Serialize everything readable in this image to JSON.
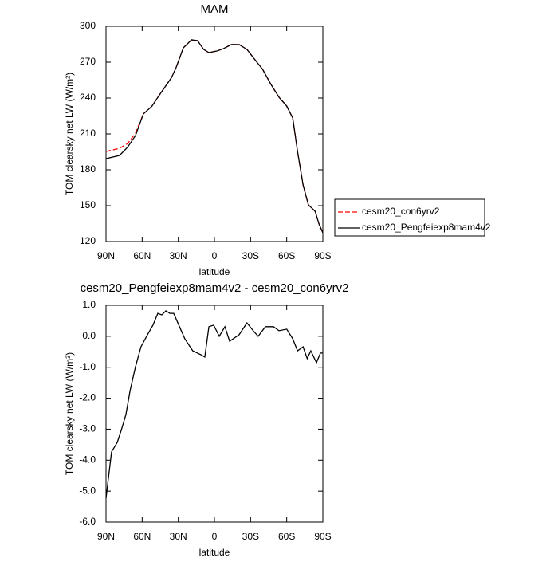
{
  "chart_data": [
    {
      "type": "line",
      "title": "MAM",
      "xlabel": "latitude",
      "ylabel": "TOM clearsky net LW (W/m²)",
      "x": [
        90,
        78.75,
        72,
        65.5,
        59,
        52,
        45.6,
        35.7,
        32,
        25.8,
        19,
        14,
        9,
        4.6,
        -2,
        -7.4,
        -14,
        -20.5,
        -27,
        -33.7,
        -40,
        -47,
        -53.6,
        -60,
        -65,
        -69,
        -73.6,
        -78,
        -83.6,
        -86.7,
        -90
      ],
      "series": [
        {
          "name": "cesm20_con6yrv2",
          "color": "#ff0000",
          "style": "dashed",
          "values": [
            195.3,
            198,
            202,
            210.7,
            226.7,
            233,
            242.7,
            257,
            265,
            282,
            288.7,
            288,
            280.7,
            278,
            279.3,
            281.3,
            284.7,
            284.7,
            280.7,
            272,
            264,
            251.3,
            240.7,
            233.3,
            223.3,
            195.3,
            167.3,
            150.7,
            145.3,
            135,
            127.3
          ]
        },
        {
          "name": "cesm20_Pengfeiexp8mam4v2",
          "color": "#000000",
          "style": "solid",
          "values": [
            189.3,
            192,
            199,
            208.7,
            226.7,
            233,
            242.7,
            257,
            265,
            282,
            288.7,
            288,
            280.7,
            278,
            279.3,
            281.3,
            284.7,
            284.7,
            280.7,
            272,
            264,
            251.3,
            240.7,
            233.3,
            223.3,
            195.3,
            167.3,
            150.7,
            145.3,
            135,
            127.3
          ]
        }
      ],
      "xlim": [
        90,
        -90
      ],
      "xticks": [
        {
          "value": 90,
          "label": "90N"
        },
        {
          "value": 60,
          "label": "60N"
        },
        {
          "value": 30,
          "label": "30N"
        },
        0,
        {
          "value": -30,
          "label": "30S"
        },
        {
          "value": -60,
          "label": "60S"
        },
        {
          "value": -90,
          "label": "90S"
        }
      ],
      "ylim": [
        120,
        300
      ],
      "yticks": [
        120,
        150,
        180,
        210,
        240,
        270,
        300
      ],
      "legend": "right"
    },
    {
      "type": "line",
      "title": "cesm20_Pengfeiexp8mam4v2 - cesm20_con6yrv2",
      "xlabel": "latitude",
      "ylabel": "TOM clearsky net LW (W/m²)",
      "x": [
        90,
        85.4,
        80.7,
        77.4,
        73.5,
        70,
        65.5,
        61,
        55.6,
        51,
        47,
        43.7,
        40.3,
        37,
        33.8,
        29,
        24.6,
        18,
        11,
        8,
        4.6,
        0.6,
        -4,
        -8.7,
        -12.6,
        -20.5,
        -27,
        -32.4,
        -36.3,
        -42.3,
        -49,
        -53.6,
        -60,
        -65,
        -69,
        -73.6,
        -77,
        -80,
        -84.7,
        -88,
        -90
      ],
      "values": [
        -5.23,
        -3.73,
        -3.43,
        -3.04,
        -2.53,
        -1.75,
        -0.98,
        -0.34,
        0.05,
        0.36,
        0.74,
        0.69,
        0.82,
        0.74,
        0.74,
        0.31,
        -0.08,
        -0.47,
        -0.6,
        -0.67,
        0.31,
        0.36,
        0,
        0.31,
        -0.16,
        0.05,
        0.43,
        0.17,
        0,
        0.31,
        0.31,
        0.18,
        0.23,
        -0.08,
        -0.47,
        -0.34,
        -0.72,
        -0.47,
        -0.85,
        -0.54,
        -0.54
      ],
      "color": "#000000",
      "xlim": [
        90,
        -90
      ],
      "xticks": [
        {
          "value": 90,
          "label": "90N"
        },
        {
          "value": 60,
          "label": "60N"
        },
        {
          "value": 30,
          "label": "30N"
        },
        0,
        {
          "value": -30,
          "label": "30S"
        },
        {
          "value": -60,
          "label": "60S"
        },
        {
          "value": -90,
          "label": "90S"
        }
      ],
      "ylim": [
        -6,
        1
      ],
      "yticks": [
        {
          "value": -6,
          "label": "-6.0"
        },
        {
          "value": -5,
          "label": "-5.0"
        },
        {
          "value": -4,
          "label": "-4.0"
        },
        {
          "value": -3,
          "label": "-3.0"
        },
        {
          "value": -2,
          "label": "-2.0"
        },
        {
          "value": -1,
          "label": "-1.0"
        },
        {
          "value": 0,
          "label": "0.0"
        },
        {
          "value": 1,
          "label": "1.0"
        }
      ]
    }
  ]
}
